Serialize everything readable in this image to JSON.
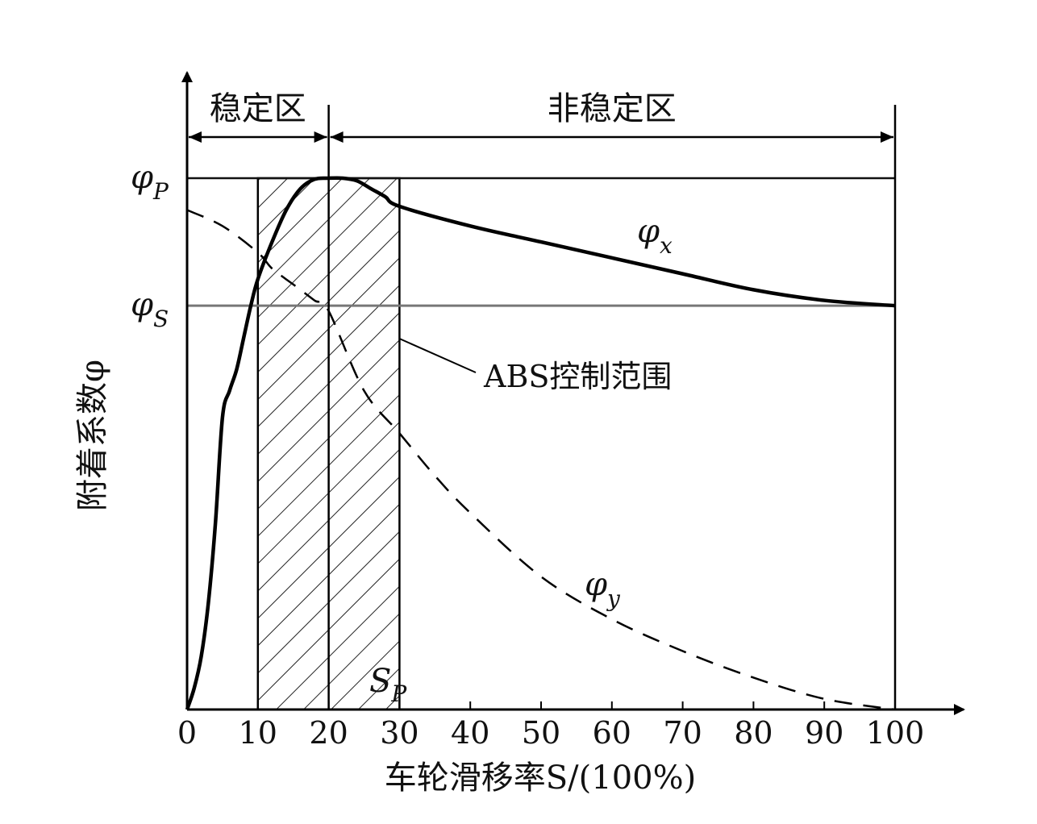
{
  "chart_data": {
    "type": "line",
    "xlabel": "车轮滑移率S/(100%)",
    "ylabel": "附着系数φ",
    "x_ticks": [
      "0",
      "10",
      "20",
      "30",
      "40",
      "50",
      "60",
      "70",
      "80",
      "90",
      "100"
    ],
    "xlim": [
      0,
      100
    ],
    "zones": [
      {
        "label": "稳定区",
        "from": 0,
        "to": 20
      },
      {
        "label": "非稳定区",
        "from": 20,
        "to": 100
      }
    ],
    "hlines": [
      {
        "label": "φ",
        "sub": "P",
        "value": 1.0
      },
      {
        "label": "φ",
        "sub": "S",
        "value": 0.76
      }
    ],
    "shaded_region": {
      "label": "ABS控制范围",
      "from": 10,
      "to": 30
    },
    "marker": {
      "label": "S",
      "sub": "P",
      "x": 20
    },
    "series": [
      {
        "name": "φx",
        "label": "φ",
        "sub": "x",
        "style": "solid",
        "x": [
          0,
          1,
          2,
          3,
          4,
          5,
          6,
          7,
          8,
          9,
          10,
          12,
          14,
          16,
          18,
          20,
          22,
          24,
          26,
          28,
          30,
          40,
          50,
          60,
          70,
          80,
          90,
          100
        ],
        "y": [
          0.0,
          0.04,
          0.1,
          0.2,
          0.35,
          0.55,
          0.6,
          0.64,
          0.7,
          0.76,
          0.81,
          0.88,
          0.94,
          0.98,
          0.998,
          1.0,
          1.0,
          0.995,
          0.98,
          0.965,
          0.947,
          0.91,
          0.88,
          0.85,
          0.82,
          0.79,
          0.77,
          0.76
        ]
      },
      {
        "name": "φy",
        "label": "φ",
        "sub": "y",
        "style": "dashed",
        "x": [
          0,
          5,
          10,
          12,
          15,
          18,
          20,
          25,
          30,
          35,
          40,
          50,
          60,
          70,
          80,
          90,
          100
        ],
        "y": [
          0.94,
          0.91,
          0.86,
          0.83,
          0.8,
          0.77,
          0.75,
          0.6,
          0.52,
          0.44,
          0.37,
          0.25,
          0.17,
          0.11,
          0.06,
          0.02,
          0.0
        ]
      }
    ]
  }
}
